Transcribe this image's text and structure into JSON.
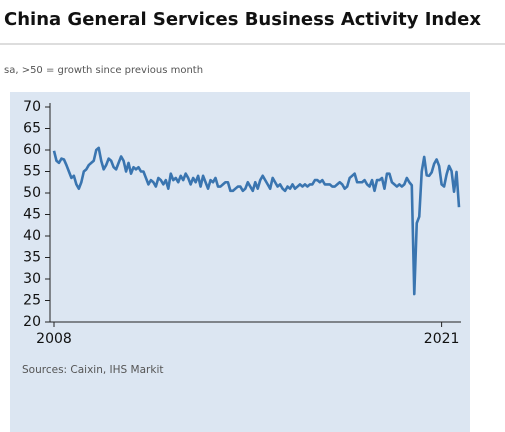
{
  "chart_data": {
    "type": "line",
    "title": "China General Services Business Activity Index",
    "subtitle": "sa, >50 = growth since previous month",
    "source": "Sources: Caixin, IHS Markit",
    "x": [
      "2008-01",
      "2008-02",
      "2008-03",
      "2008-04",
      "2008-05",
      "2008-06",
      "2008-07",
      "2008-08",
      "2008-09",
      "2008-10",
      "2008-11",
      "2008-12",
      "2009-01",
      "2009-02",
      "2009-03",
      "2009-04",
      "2009-05",
      "2009-06",
      "2009-07",
      "2009-08",
      "2009-09",
      "2009-10",
      "2009-11",
      "2009-12",
      "2010-01",
      "2010-02",
      "2010-03",
      "2010-04",
      "2010-05",
      "2010-06",
      "2010-07",
      "2010-08",
      "2010-09",
      "2010-10",
      "2010-11",
      "2010-12",
      "2011-01",
      "2011-02",
      "2011-03",
      "2011-04",
      "2011-05",
      "2011-06",
      "2011-07",
      "2011-08",
      "2011-09",
      "2011-10",
      "2011-11",
      "2011-12",
      "2012-01",
      "2012-02",
      "2012-03",
      "2012-04",
      "2012-05",
      "2012-06",
      "2012-07",
      "2012-08",
      "2012-09",
      "2012-10",
      "2012-11",
      "2012-12",
      "2013-01",
      "2013-02",
      "2013-03",
      "2013-04",
      "2013-05",
      "2013-06",
      "2013-07",
      "2013-08",
      "2013-09",
      "2013-10",
      "2013-11",
      "2013-12",
      "2014-01",
      "2014-02",
      "2014-03",
      "2014-04",
      "2014-05",
      "2014-06",
      "2014-07",
      "2014-08",
      "2014-09",
      "2014-10",
      "2014-11",
      "2014-12",
      "2015-01",
      "2015-02",
      "2015-03",
      "2015-04",
      "2015-05",
      "2015-06",
      "2015-07",
      "2015-08",
      "2015-09",
      "2015-10",
      "2015-11",
      "2015-12",
      "2016-01",
      "2016-02",
      "2016-03",
      "2016-04",
      "2016-05",
      "2016-06",
      "2016-07",
      "2016-08",
      "2016-09",
      "2016-10",
      "2016-11",
      "2016-12",
      "2017-01",
      "2017-02",
      "2017-03",
      "2017-04",
      "2017-05",
      "2017-06",
      "2017-07",
      "2017-08",
      "2017-09",
      "2017-10",
      "2017-11",
      "2017-12",
      "2018-01",
      "2018-02",
      "2018-03",
      "2018-04",
      "2018-05",
      "2018-06",
      "2018-07",
      "2018-08",
      "2018-09",
      "2018-10",
      "2018-11",
      "2018-12",
      "2019-01",
      "2019-02",
      "2019-03",
      "2019-04",
      "2019-05",
      "2019-06",
      "2019-07",
      "2019-08",
      "2019-09",
      "2019-10",
      "2019-11",
      "2019-12",
      "2020-01",
      "2020-02",
      "2020-03",
      "2020-04",
      "2020-05",
      "2020-06",
      "2020-07",
      "2020-08",
      "2020-09",
      "2020-10",
      "2020-11",
      "2020-12",
      "2021-01",
      "2021-02",
      "2021-03",
      "2021-04",
      "2021-05",
      "2021-06",
      "2021-07",
      "2021-08"
    ],
    "series": [
      {
        "color": "#3a75b0",
        "values": [
          59.8,
          57.5,
          57.0,
          58.0,
          57.8,
          56.5,
          55.0,
          53.5,
          54.0,
          52.0,
          51.0,
          52.5,
          55.0,
          55.5,
          56.5,
          57.0,
          57.5,
          60.0,
          60.5,
          57.5,
          55.5,
          56.5,
          58.0,
          57.5,
          56.0,
          55.5,
          57.0,
          58.5,
          57.5,
          55.0,
          57.0,
          54.5,
          56.0,
          55.5,
          56.0,
          55.0,
          55.0,
          53.5,
          52.0,
          53.0,
          52.5,
          51.5,
          53.5,
          53.0,
          52.0,
          53.0,
          51.0,
          54.5,
          53.0,
          53.5,
          52.5,
          54.0,
          53.0,
          54.5,
          53.5,
          52.0,
          53.5,
          52.5,
          54.0,
          51.5,
          54.0,
          52.5,
          51.0,
          53.0,
          52.5,
          53.5,
          51.5,
          51.5,
          52.0,
          52.5,
          52.5,
          50.5,
          50.5,
          51.0,
          51.5,
          51.5,
          50.5,
          51.0,
          52.5,
          51.5,
          50.5,
          52.5,
          51.0,
          53.0,
          54.0,
          53.0,
          52.0,
          51.0,
          53.5,
          52.5,
          51.5,
          52.0,
          51.0,
          50.5,
          51.5,
          51.0,
          52.0,
          51.0,
          51.5,
          52.0,
          51.5,
          52.0,
          51.5,
          52.0,
          52.0,
          53.0,
          53.0,
          52.5,
          53.0,
          52.0,
          52.0,
          52.0,
          51.5,
          51.5,
          52.0,
          52.5,
          52.0,
          51.0,
          51.5,
          53.5,
          54.0,
          54.5,
          52.5,
          52.5,
          52.5,
          53.0,
          52.0,
          51.5,
          53.0,
          50.5,
          53.0,
          53.0,
          53.5,
          51.0,
          54.5,
          54.5,
          52.5,
          52.0,
          51.5,
          52.0,
          51.5,
          52.0,
          53.5,
          52.5,
          51.8,
          26.5,
          43.0,
          44.5,
          55.0,
          58.4,
          54.1,
          54.0,
          54.8,
          56.8,
          57.8,
          56.3,
          52.0,
          51.5,
          54.3,
          56.3,
          55.1,
          50.3,
          54.9,
          46.7
        ]
      }
    ],
    "xlim": [
      "2008-01",
      "2021-08"
    ],
    "xticks": [
      {
        "value": "2008-01",
        "label": "2008"
      },
      {
        "value": "2021-01",
        "label": "2021"
      }
    ],
    "ylim": [
      20,
      70
    ],
    "yticks": [
      20,
      25,
      30,
      35,
      40,
      45,
      50,
      55,
      60,
      65,
      70
    ]
  }
}
